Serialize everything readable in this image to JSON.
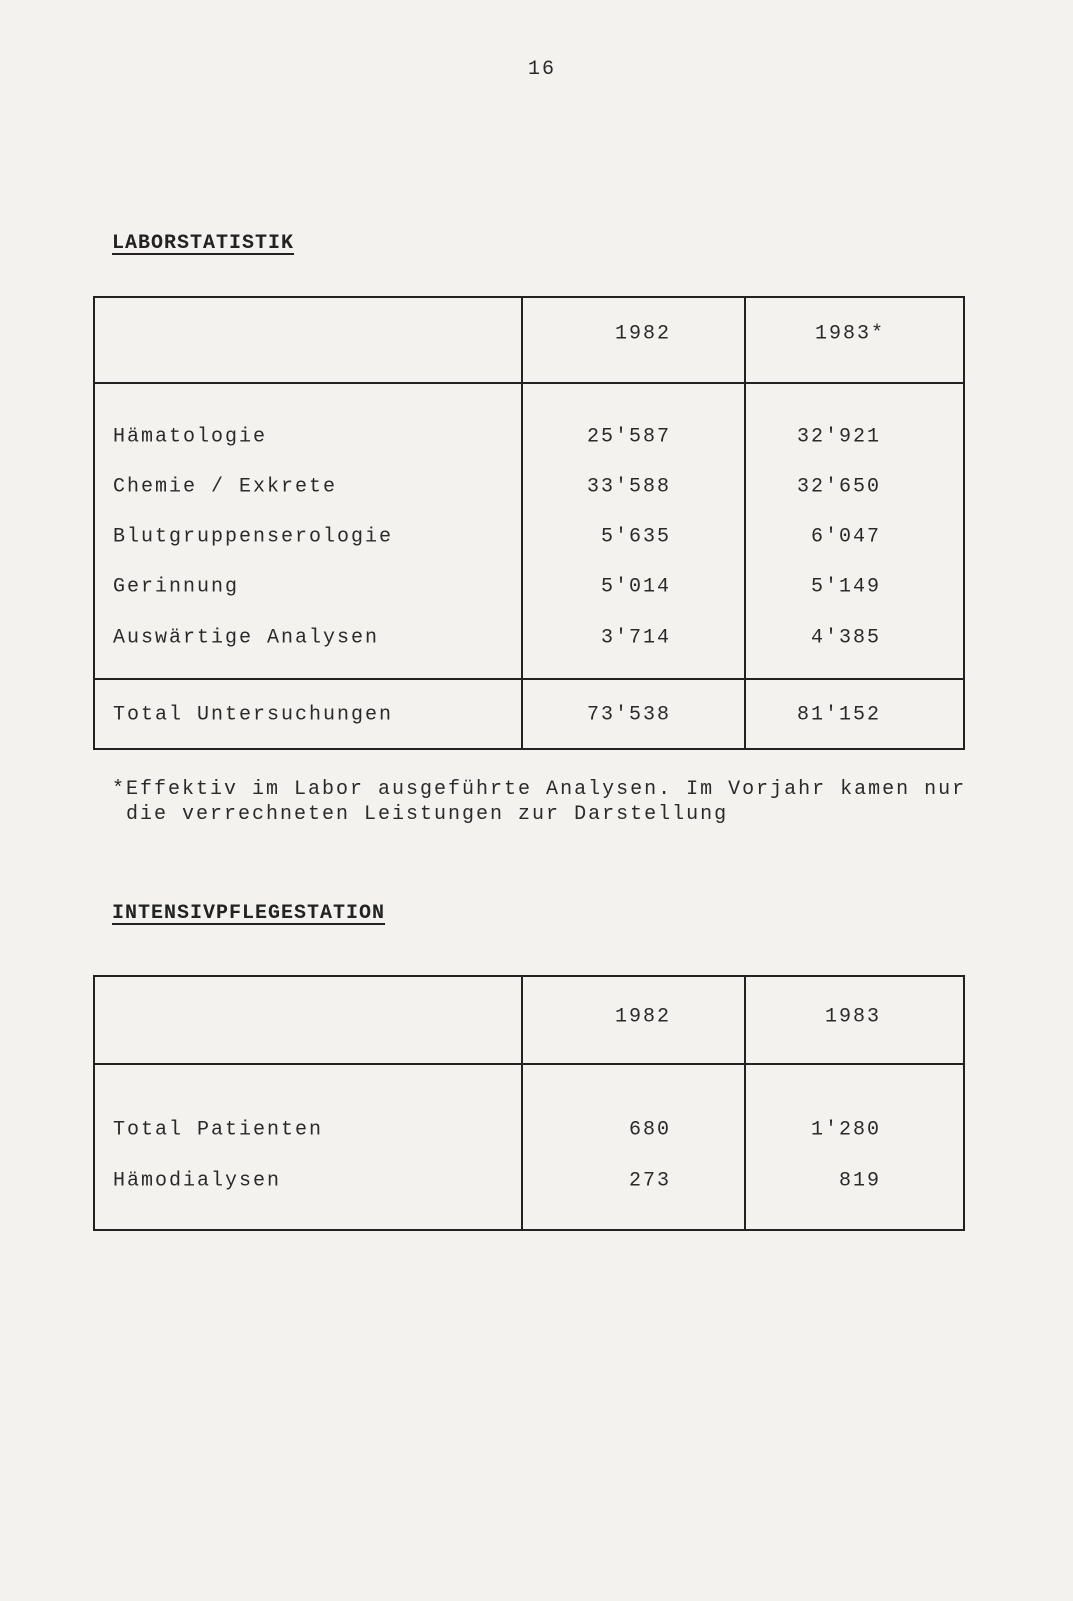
{
  "page_number": "16",
  "labor": {
    "title": "LABORSTATISTIK",
    "headers": [
      "",
      "1982",
      "1983*"
    ],
    "rows": [
      {
        "label": "Hämatologie",
        "y1982": "25'587",
        "y1983": "32'921"
      },
      {
        "label": "Chemie / Exkrete",
        "y1982": "33'588",
        "y1983": "32'650"
      },
      {
        "label": "Blutgruppenserologie",
        "y1982": "5'635",
        "y1983": "6'047"
      },
      {
        "label": "Gerinnung",
        "y1982": "5'014",
        "y1983": "5'149"
      },
      {
        "label": "Auswärtige Analysen",
        "y1982": "3'714",
        "y1983": "4'385"
      }
    ],
    "total": {
      "label": "Total Untersuchungen",
      "y1982": "73'538",
      "y1983": "81'152"
    },
    "footnote_line1": "*Effektiv im Labor ausgeführte Analysen. Im Vorjahr kamen nur",
    "footnote_line2": "die verrechneten Leistungen zur Darstellung"
  },
  "ips": {
    "title": "INTENSIVPFLEGESTATION",
    "headers": [
      "",
      "1982",
      "1983"
    ],
    "rows": [
      {
        "label": "Total Patienten",
        "y1982": "680",
        "y1983": "1'280"
      },
      {
        "label": "Hämodialysen",
        "y1982": "273",
        "y1983": "819"
      }
    ]
  }
}
